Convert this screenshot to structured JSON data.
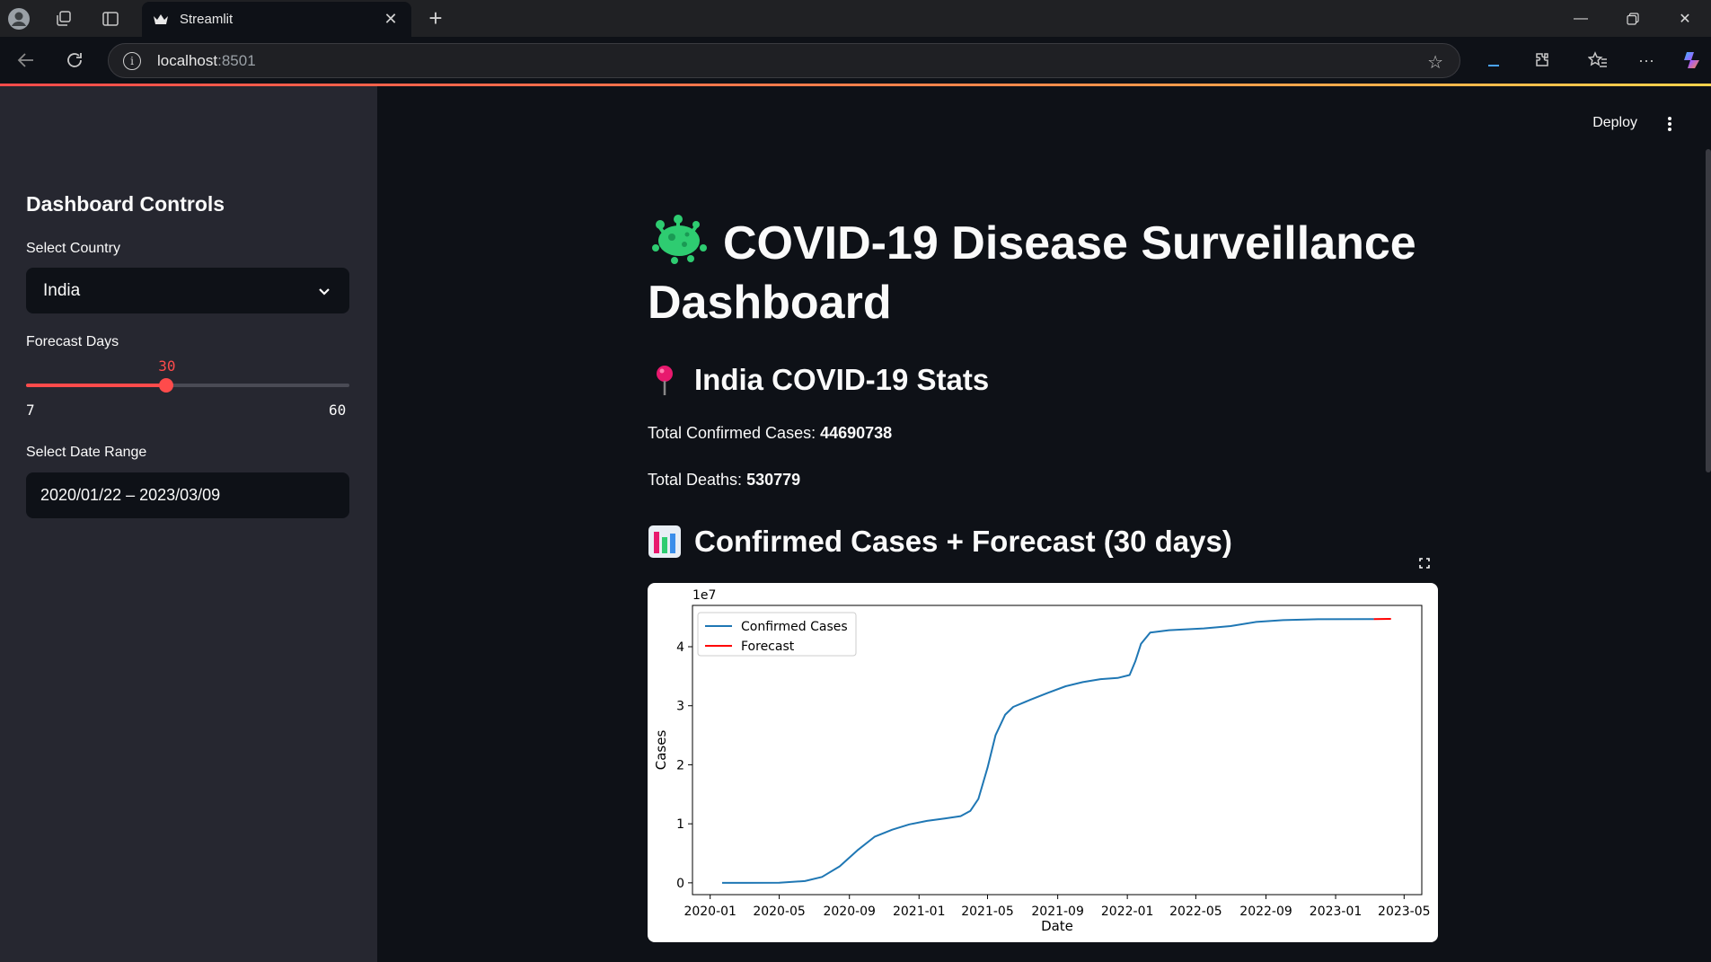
{
  "browser": {
    "tab_title": "Streamlit",
    "url_host": "localhost",
    "url_port": ":8501"
  },
  "app": {
    "deploy_label": "Deploy"
  },
  "sidebar": {
    "heading": "Dashboard Controls",
    "country_label": "Select Country",
    "country_value": "India",
    "forecast_label": "Forecast Days",
    "forecast_value": 30,
    "forecast_min": 7,
    "forecast_max": 60,
    "date_label": "Select Date Range",
    "date_value": "2020/01/22 – 2023/03/09"
  },
  "main": {
    "title": "COVID-19 Disease Surveillance Dashboard",
    "stats_heading": "India COVID-19 Stats",
    "confirmed_label": "Total Confirmed Cases:",
    "confirmed_value": "44690738",
    "deaths_label": "Total Deaths:",
    "deaths_value": "530779",
    "chart_heading": "Confirmed Cases + Forecast (30 days)"
  },
  "colors": {
    "accent": "#ff4b4b",
    "sidebar_bg": "#262730",
    "main_bg": "#0e1117",
    "series_confirmed": "#1f77b4",
    "series_forecast": "#ff0000"
  },
  "chart_data": {
    "type": "line",
    "xlabel": "Date",
    "ylabel": "Cases",
    "y_scale_label": "1e7",
    "x_ticks": [
      "2020-01",
      "2020-05",
      "2020-09",
      "2021-01",
      "2021-05",
      "2021-09",
      "2022-01",
      "2022-05",
      "2022-09",
      "2023-01",
      "2023-05"
    ],
    "y_ticks": [
      "0",
      "1",
      "2",
      "3",
      "4"
    ],
    "ylim": [
      -0.2,
      4.7
    ],
    "xlim": [
      "2019-12-01",
      "2023-06-01"
    ],
    "legend_position": "upper-left",
    "grid": false,
    "series": [
      {
        "name": "Confirmed Cases",
        "color": "#1f77b4",
        "points": [
          [
            "2020-01-22",
            0.0
          ],
          [
            "2020-03-01",
            0.0
          ],
          [
            "2020-05-01",
            0.003
          ],
          [
            "2020-06-15",
            0.03
          ],
          [
            "2020-07-15",
            0.1
          ],
          [
            "2020-08-15",
            0.28
          ],
          [
            "2020-09-15",
            0.55
          ],
          [
            "2020-10-15",
            0.78
          ],
          [
            "2020-11-15",
            0.9
          ],
          [
            "2020-12-15",
            0.99
          ],
          [
            "2021-01-15",
            1.05
          ],
          [
            "2021-02-15",
            1.09
          ],
          [
            "2021-03-15",
            1.13
          ],
          [
            "2021-04-01",
            1.22
          ],
          [
            "2021-04-15",
            1.42
          ],
          [
            "2021-05-01",
            1.95
          ],
          [
            "2021-05-15",
            2.5
          ],
          [
            "2021-06-01",
            2.85
          ],
          [
            "2021-06-15",
            2.98
          ],
          [
            "2021-07-15",
            3.1
          ],
          [
            "2021-08-15",
            3.22
          ],
          [
            "2021-09-15",
            3.33
          ],
          [
            "2021-10-15",
            3.4
          ],
          [
            "2021-11-15",
            3.45
          ],
          [
            "2021-12-15",
            3.47
          ],
          [
            "2022-01-05",
            3.52
          ],
          [
            "2022-01-15",
            3.75
          ],
          [
            "2022-01-25",
            4.05
          ],
          [
            "2022-02-10",
            4.24
          ],
          [
            "2022-03-15",
            4.28
          ],
          [
            "2022-05-15",
            4.31
          ],
          [
            "2022-07-01",
            4.35
          ],
          [
            "2022-08-15",
            4.42
          ],
          [
            "2022-10-01",
            4.45
          ],
          [
            "2022-12-01",
            4.465
          ],
          [
            "2023-03-09",
            4.469
          ]
        ]
      },
      {
        "name": "Forecast",
        "color": "#ff0000",
        "points": [
          [
            "2023-03-09",
            4.469
          ],
          [
            "2023-04-08",
            4.472
          ]
        ]
      }
    ]
  }
}
